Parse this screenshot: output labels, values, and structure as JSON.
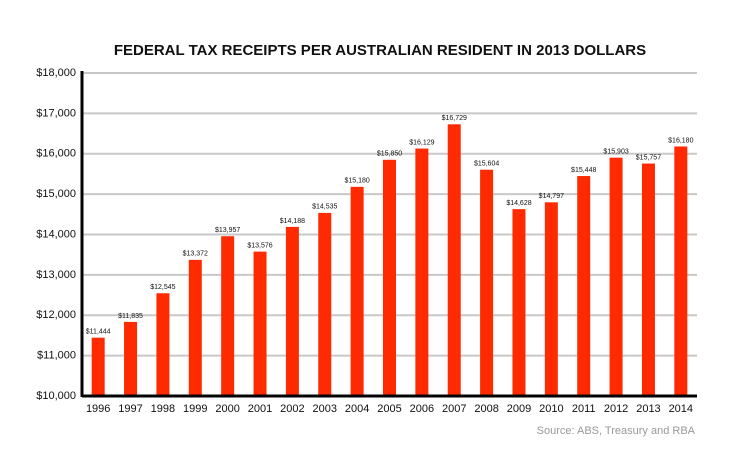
{
  "chart_data": {
    "type": "bar",
    "title": "FEDERAL TAX RECEIPTS PER AUSTRALIAN RESIDENT IN 2013 DOLLARS",
    "source": "Source: ABS, Treasury and RBA",
    "categories": [
      "1996",
      "1997",
      "1998",
      "1999",
      "2000",
      "2001",
      "2002",
      "2003",
      "2004",
      "2005",
      "2006",
      "2007",
      "2008",
      "2009",
      "2010",
      "2011",
      "2012",
      "2013",
      "2014"
    ],
    "values": [
      11444,
      11835,
      12545,
      13372,
      13957,
      13576,
      14188,
      14535,
      15180,
      15850,
      16129,
      16729,
      15604,
      14628,
      14797,
      15448,
      15903,
      15757,
      16180
    ],
    "value_labels": [
      "$11,444",
      "$11,835",
      "$12,545",
      "$13,372",
      "$13,957",
      "$13,576",
      "$14,188",
      "$14,535",
      "$15,180",
      "$15,850",
      "$16,129",
      "$16,729",
      "$15,604",
      "$14,628",
      "$14,797",
      "$15,448",
      "$15,903",
      "$15,757",
      "$16,180"
    ],
    "color": "#ff2a00",
    "ylim": [
      10000,
      18000
    ],
    "yticks": [
      {
        "value": 10000,
        "label": "$10,000"
      },
      {
        "value": 11000,
        "label": "$11,000"
      },
      {
        "value": 12000,
        "label": "$12,000"
      },
      {
        "value": 13000,
        "label": "$13,000"
      },
      {
        "value": 14000,
        "label": "$14,000"
      },
      {
        "value": 15000,
        "label": "$15,000"
      },
      {
        "value": 16000,
        "label": "$16,000"
      },
      {
        "value": 17000,
        "label": "$17,000"
      },
      {
        "value": 18000,
        "label": "$18,000"
      }
    ],
    "grid": true
  }
}
